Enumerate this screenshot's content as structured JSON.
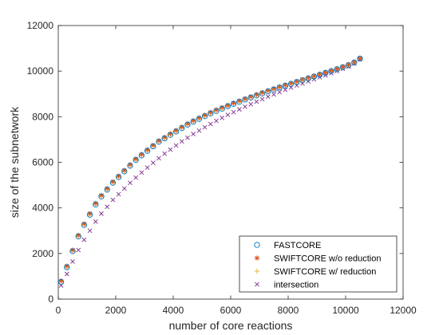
{
  "chart_data": {
    "type": "scatter",
    "title": "",
    "xlabel": "number of core reactions",
    "ylabel": "size of the subnetwork",
    "xlim": [
      0,
      12000
    ],
    "ylim": [
      0,
      12000
    ],
    "x_ticks": [
      0,
      2000,
      4000,
      6000,
      8000,
      10000,
      12000
    ],
    "y_ticks": [
      0,
      2000,
      4000,
      6000,
      8000,
      10000,
      12000
    ],
    "x_tick_labels": [
      "0",
      "2000",
      "4000",
      "6000",
      "8000",
      "10000",
      "12000"
    ],
    "y_tick_labels": [
      "0",
      "2000",
      "4000",
      "6000",
      "8000",
      "10000",
      "12000"
    ],
    "grid": false,
    "legend_position": "bottom-right",
    "x": [
      100,
      300,
      500,
      700,
      900,
      1100,
      1300,
      1500,
      1700,
      1900,
      2100,
      2300,
      2500,
      2700,
      2900,
      3100,
      3300,
      3500,
      3700,
      3900,
      4100,
      4300,
      4500,
      4700,
      4900,
      5100,
      5300,
      5500,
      5700,
      5900,
      6100,
      6300,
      6500,
      6700,
      6900,
      7100,
      7300,
      7500,
      7700,
      7900,
      8100,
      8300,
      8500,
      8700,
      8900,
      9100,
      9300,
      9500,
      9700,
      9900,
      10100,
      10300,
      10500
    ],
    "series": [
      {
        "name": "FASTCORE",
        "marker": "circle",
        "color": "#0072BD",
        "values": [
          750,
          1400,
          2100,
          2750,
          3250,
          3700,
          4150,
          4500,
          4800,
          5100,
          5350,
          5600,
          5850,
          6100,
          6300,
          6500,
          6700,
          6900,
          7050,
          7200,
          7350,
          7500,
          7650,
          7780,
          7900,
          8020,
          8140,
          8250,
          8350,
          8460,
          8560,
          8650,
          8750,
          8840,
          8930,
          9020,
          9110,
          9190,
          9280,
          9360,
          9440,
          9520,
          9600,
          9680,
          9760,
          9840,
          9920,
          10000,
          10080,
          10170,
          10260,
          10380,
          10550
        ]
      },
      {
        "name": "SWIFTCORE w/o reduction",
        "marker": "asterisk",
        "color": "#D95319",
        "values": [
          800,
          1450,
          2150,
          2800,
          3300,
          3750,
          4200,
          4550,
          4850,
          5150,
          5400,
          5650,
          5900,
          6150,
          6350,
          6550,
          6750,
          6950,
          7100,
          7250,
          7400,
          7550,
          7700,
          7830,
          7950,
          8070,
          8190,
          8300,
          8400,
          8500,
          8600,
          8700,
          8790,
          8880,
          8970,
          9060,
          9150,
          9230,
          9310,
          9390,
          9470,
          9550,
          9630,
          9710,
          9790,
          9870,
          9950,
          10030,
          10110,
          10200,
          10290,
          10400,
          10560
        ]
      },
      {
        "name": "SWIFTCORE w/ reduction",
        "marker": "plus",
        "color": "#EDB120",
        "values": [
          780,
          1420,
          2120,
          2770,
          3270,
          3720,
          4170,
          4520,
          4820,
          5120,
          5370,
          5620,
          5870,
          6120,
          6320,
          6520,
          6720,
          6920,
          7070,
          7220,
          7370,
          7520,
          7670,
          7800,
          7920,
          8040,
          8160,
          8270,
          8370,
          8480,
          8580,
          8670,
          8770,
          8860,
          8950,
          9040,
          9130,
          9210,
          9290,
          9370,
          9450,
          9530,
          9610,
          9690,
          9770,
          9850,
          9930,
          10010,
          10090,
          10180,
          10270,
          10390,
          10550
        ]
      },
      {
        "name": "intersection",
        "marker": "x",
        "color": "#7E2F8E",
        "values": [
          600,
          1100,
          1650,
          2150,
          2600,
          3000,
          3400,
          3750,
          4050,
          4350,
          4600,
          4850,
          5100,
          5330,
          5550,
          5770,
          5980,
          6180,
          6380,
          6560,
          6740,
          6920,
          7080,
          7240,
          7390,
          7540,
          7680,
          7820,
          7950,
          8080,
          8200,
          8320,
          8440,
          8550,
          8660,
          8770,
          8880,
          8980,
          9080,
          9180,
          9280,
          9370,
          9460,
          9550,
          9640,
          9730,
          9820,
          9910,
          10000,
          10100,
          10200,
          10330,
          10520
        ]
      }
    ]
  }
}
